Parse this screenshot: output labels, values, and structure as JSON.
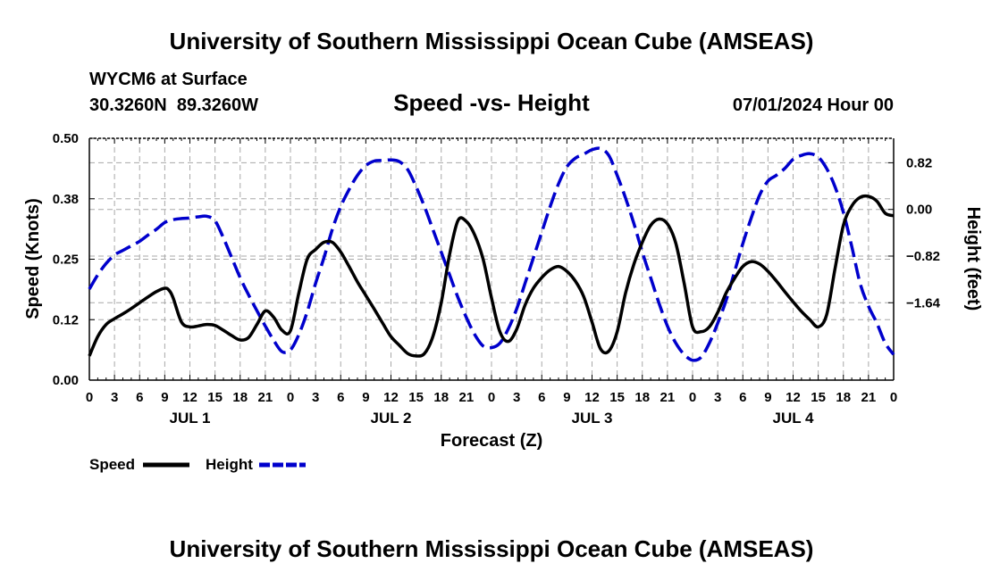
{
  "chart_data": {
    "type": "line",
    "title": "University of Southern Mississippi Ocean Cube (AMSEAS)",
    "footer_title": "University of Southern Mississippi Ocean Cube (AMSEAS)",
    "station": "WYCM6 at Surface",
    "location": "30.3260N  89.3260W",
    "subtitle": "Speed -vs- Height",
    "run_time": "07/01/2024 Hour 00",
    "xlabel": "Forecast (Z)",
    "ylabel_left": "Speed (Knots)",
    "ylabel_right": "Height (feet)",
    "x_range": [
      0,
      96
    ],
    "x_ticks": [
      0,
      3,
      6,
      9,
      12,
      15,
      18,
      21,
      24,
      27,
      30,
      33,
      36,
      39,
      42,
      45,
      48,
      51,
      54,
      57,
      60,
      63,
      66,
      69,
      72,
      75,
      78,
      81,
      84,
      87,
      90,
      93,
      96
    ],
    "x_tick_labels": [
      "0",
      "3",
      "6",
      "9",
      "12",
      "15",
      "18",
      "21",
      "0",
      "3",
      "6",
      "9",
      "12",
      "15",
      "18",
      "21",
      "0",
      "3",
      "6",
      "9",
      "12",
      "15",
      "18",
      "21",
      "0",
      "3",
      "6",
      "9",
      "12",
      "15",
      "18",
      "21",
      "0"
    ],
    "day_labels": [
      {
        "x": 12,
        "label": "JUL 1"
      },
      {
        "x": 36,
        "label": "JUL 2"
      },
      {
        "x": 60,
        "label": "JUL 3"
      },
      {
        "x": 84,
        "label": "JUL 4"
      }
    ],
    "ylim_left": [
      0,
      0.5
    ],
    "y_ticks_left": [
      0,
      0.125,
      0.25,
      0.375,
      0.5
    ],
    "y_tick_labels_left": [
      "0.00",
      "0.12",
      "0.25",
      "0.38",
      "0.50"
    ],
    "ylim_right": [
      -3.0,
      1.25
    ],
    "y_ticks_right": [
      -1.64,
      -0.82,
      0.0,
      0.82
    ],
    "y_tick_labels_right": [
      "−1.64",
      "−0.82",
      "0.00",
      "0.82"
    ],
    "grid": true,
    "legend_position": "bottom-left",
    "series": [
      {
        "name": "Speed",
        "axis": "left",
        "color": "#000000",
        "style": "solid",
        "x": [
          0,
          1,
          2,
          3,
          4,
          5,
          6,
          7,
          8,
          9,
          9.5,
          10,
          11,
          12,
          13,
          14,
          15,
          16,
          17,
          18,
          19,
          20,
          21,
          22,
          23,
          24,
          25,
          26,
          27,
          28,
          29,
          30,
          31,
          32,
          33,
          34,
          35,
          36,
          37,
          38,
          39,
          40,
          41,
          42,
          43,
          44,
          45,
          46,
          47,
          48,
          49,
          50,
          51,
          52,
          53,
          54,
          55,
          56,
          57,
          58,
          59,
          60,
          61,
          62,
          63,
          64,
          65,
          66,
          67,
          68,
          69,
          70,
          71,
          72,
          73,
          74,
          75,
          76,
          77,
          78,
          79,
          80,
          81,
          82,
          83,
          84,
          85,
          86,
          87,
          88,
          89,
          90,
          91,
          92,
          93,
          94,
          95,
          96
        ],
        "values": [
          0.05,
          0.09,
          0.115,
          0.127,
          0.137,
          0.148,
          0.16,
          0.172,
          0.183,
          0.19,
          0.186,
          0.17,
          0.12,
          0.11,
          0.112,
          0.115,
          0.113,
          0.103,
          0.092,
          0.083,
          0.088,
          0.115,
          0.143,
          0.13,
          0.103,
          0.102,
          0.18,
          0.25,
          0.27,
          0.285,
          0.285,
          0.265,
          0.235,
          0.203,
          0.175,
          0.147,
          0.118,
          0.09,
          0.072,
          0.055,
          0.05,
          0.055,
          0.09,
          0.16,
          0.26,
          0.33,
          0.328,
          0.3,
          0.25,
          0.17,
          0.1,
          0.08,
          0.105,
          0.155,
          0.19,
          0.212,
          0.228,
          0.235,
          0.225,
          0.205,
          0.173,
          0.12,
          0.065,
          0.06,
          0.1,
          0.18,
          0.24,
          0.285,
          0.32,
          0.333,
          0.323,
          0.283,
          0.2,
          0.11,
          0.1,
          0.11,
          0.14,
          0.18,
          0.21,
          0.235,
          0.245,
          0.24,
          0.225,
          0.205,
          0.183,
          0.162,
          0.142,
          0.125,
          0.11,
          0.135,
          0.23,
          0.32,
          0.36,
          0.378,
          0.38,
          0.37,
          0.345,
          0.34
        ]
      },
      {
        "name": "Height",
        "axis": "right",
        "color": "#0000cc",
        "style": "dashed",
        "x": [
          0,
          1,
          2,
          3,
          4,
          5,
          6,
          7,
          8,
          9,
          10,
          11,
          12,
          13,
          14,
          15,
          16,
          17,
          18,
          19,
          20,
          21,
          22,
          23,
          24,
          25,
          26,
          27,
          28,
          29,
          30,
          31,
          32,
          33,
          34,
          35,
          36,
          37,
          38,
          39,
          40,
          41,
          42,
          43,
          44,
          45,
          46,
          47,
          48,
          49,
          50,
          51,
          52,
          53,
          54,
          55,
          56,
          57,
          58,
          59,
          60,
          61,
          62,
          63,
          64,
          65,
          66,
          67,
          68,
          69,
          70,
          71,
          72,
          73,
          74,
          75,
          76,
          77,
          78,
          79,
          80,
          81,
          82,
          83,
          84,
          85,
          86,
          87,
          88,
          89,
          90,
          91,
          92,
          93,
          94,
          95,
          96
        ],
        "values": [
          -1.4,
          -1.15,
          -0.95,
          -0.8,
          -0.72,
          -0.64,
          -0.56,
          -0.45,
          -0.35,
          -0.23,
          -0.18,
          -0.16,
          -0.15,
          -0.13,
          -0.12,
          -0.2,
          -0.5,
          -0.85,
          -1.2,
          -1.5,
          -1.78,
          -2.05,
          -2.3,
          -2.5,
          -2.47,
          -2.2,
          -1.8,
          -1.3,
          -0.85,
          -0.35,
          0.05,
          0.35,
          0.6,
          0.77,
          0.85,
          0.86,
          0.87,
          0.84,
          0.7,
          0.4,
          0.05,
          -0.35,
          -0.75,
          -1.15,
          -1.55,
          -1.9,
          -2.2,
          -2.4,
          -2.43,
          -2.35,
          -2.1,
          -1.75,
          -1.3,
          -0.85,
          -0.4,
          0.05,
          0.45,
          0.75,
          0.9,
          0.97,
          1.05,
          1.07,
          0.95,
          0.6,
          0.2,
          -0.25,
          -0.75,
          -1.2,
          -1.65,
          -2.05,
          -2.35,
          -2.55,
          -2.65,
          -2.6,
          -2.35,
          -2.0,
          -1.6,
          -1.1,
          -0.6,
          -0.15,
          0.25,
          0.5,
          0.6,
          0.72,
          0.88,
          0.95,
          0.98,
          0.92,
          0.72,
          0.4,
          -0.05,
          -0.65,
          -1.3,
          -1.7,
          -2.0,
          -2.35,
          -2.55
        ]
      }
    ]
  }
}
